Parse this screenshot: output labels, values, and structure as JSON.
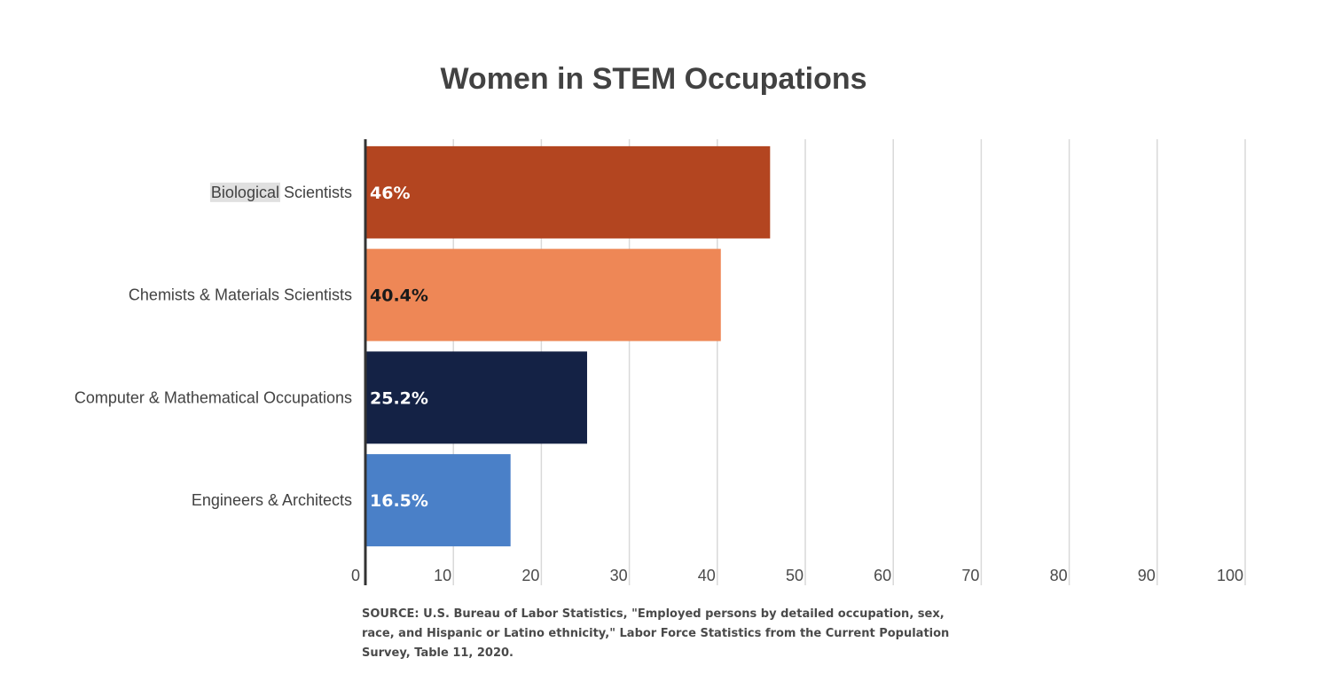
{
  "chart_data": {
    "type": "bar",
    "orientation": "horizontal",
    "title": "Women in STEM Occupations",
    "categories": [
      "Biological Scientists",
      "Chemists & Materials Scientists",
      "Computer & Mathematical Occupations",
      "Engineers & Architects"
    ],
    "values": [
      46,
      40.4,
      25.2,
      16.5
    ],
    "data_labels": [
      "46%",
      "40.4%",
      "25.2%",
      "16.5%"
    ],
    "colors": [
      "#b34520",
      "#ee8756",
      "#142245",
      "#4a80c8"
    ],
    "label_colors": [
      "#ffffff",
      "#1a1a1a",
      "#ffffff",
      "#ffffff"
    ],
    "xlim": [
      0,
      100
    ],
    "xticks": [
      0,
      10,
      20,
      30,
      40,
      50,
      60,
      70,
      80,
      90,
      100
    ],
    "grid": true,
    "highlighted_text": "Biological"
  },
  "source": "SOURCE: U.S. Bureau of Labor Statistics, \"Employed persons by detailed occupation, sex, race, and Hispanic or Latino ethnicity,\" Labor Force Statistics from the Current Population Survey, Table 11, 2020."
}
